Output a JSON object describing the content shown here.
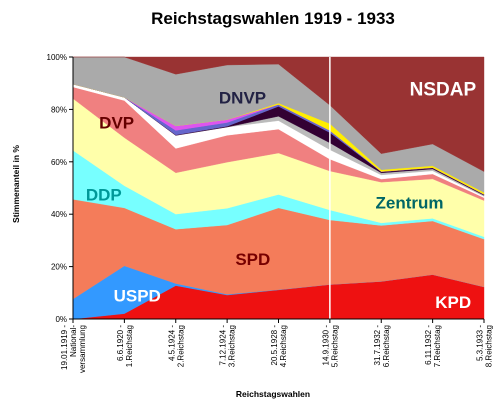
{
  "chart_data": {
    "type": "area",
    "stacked": true,
    "title": "Reichstagswahlen 1919 - 1933",
    "xlabel": "Reichstagswahlen",
    "ylabel": "Stimmenanteil in %",
    "ylim": [
      0,
      100
    ],
    "yticks": [
      "0%",
      "20%",
      "40%",
      "60%",
      "80%",
      "100%"
    ],
    "categories": [
      [
        "19.01.1919 -",
        "National-",
        "versammlung"
      ],
      [
        "6.6.1920 -",
        "1.Reichstag"
      ],
      [
        "4.5.1924 -",
        "2.Reichstag"
      ],
      [
        "7.12.1924 -",
        "3.Reichstag"
      ],
      [
        "20.5.1928 -",
        "4.Reichstag"
      ],
      [
        "14.9.1930 -",
        "5.Reichstag"
      ],
      [
        "31.7.1932 -",
        "6.Reichstag"
      ],
      [
        "6.11.1932 -",
        "7.Reichstag"
      ],
      [
        "5.3.1933 -",
        "8.Reichstag"
      ]
    ],
    "series": [
      {
        "name": "KPD",
        "color": "#ee1111",
        "values": [
          0,
          2,
          12.6,
          9,
          10.6,
          13.1,
          14.5,
          16.9,
          12.3
        ]
      },
      {
        "name": "USPD",
        "color": "#3399ff",
        "values": [
          7.6,
          17.9,
          0.8,
          0.3,
          0.1,
          0,
          0,
          0,
          0
        ]
      },
      {
        "name": "SPD",
        "color": "#f47c5a",
        "values": [
          37.9,
          21.7,
          20.5,
          26,
          29.8,
          24.5,
          21.6,
          20.4,
          18.3
        ]
      },
      {
        "name": "DDP",
        "color": "#77ffff",
        "values": [
          18.6,
          8.3,
          5.7,
          6.3,
          4.9,
          3.8,
          1,
          1,
          0.9
        ]
      },
      {
        "name": "Zentrum",
        "color": "#ffffaa",
        "values": [
          19.7,
          18,
          15.6,
          17.3,
          15.1,
          14.8,
          15.7,
          15,
          13.9
        ]
      },
      {
        "name": "DVP",
        "color": "#f08080",
        "values": [
          4.4,
          13.9,
          9.2,
          10.1,
          8.7,
          4.5,
          1.2,
          1.9,
          1.1
        ]
      },
      {
        "name": "",
        "color": "#ffffff",
        "values": [
          1.1,
          1.2,
          4.9,
          3.1,
          3.1,
          3.6,
          1.6,
          1.2,
          0.5
        ]
      },
      {
        "name": "",
        "color": "#bbbbbb",
        "values": [
          0,
          0,
          0,
          0,
          1.6,
          2.6,
          0.8,
          0.7,
          0.4
        ]
      },
      {
        "name": "",
        "color": "#330033",
        "values": [
          0,
          0,
          0.2,
          0.3,
          3.6,
          3.9,
          0.4,
          0.4,
          0.3
        ]
      },
      {
        "name": "",
        "color": "#6666cc",
        "values": [
          0,
          0,
          1.7,
          1.4,
          0.7,
          0.8,
          0.1,
          0.1,
          0.1
        ]
      },
      {
        "name": "",
        "color": "#dd55ee",
        "values": [
          0,
          0,
          1.7,
          1.1,
          0,
          0,
          0,
          0,
          0
        ]
      },
      {
        "name": "",
        "color": "#ffee00",
        "values": [
          0,
          0,
          0,
          0,
          0.5,
          2.6,
          0.7,
          0.7,
          0.7
        ]
      },
      {
        "name": "DNVP",
        "color": "#aaaaaa",
        "values": [
          10.3,
          15.1,
          19.5,
          20.5,
          14.2,
          7,
          6.2,
          8.3,
          8
        ]
      },
      {
        "name": "NSDAP",
        "color": "#993333",
        "values": [
          0,
          0,
          6.5,
          3,
          2.6,
          18.3,
          37.3,
          33.1,
          43.9
        ]
      }
    ],
    "annotation_date": "14.9.1930",
    "labels": [
      {
        "text": "NSDAP",
        "color": "#ffffff",
        "size": 19,
        "cat": 7.2,
        "y": 88
      },
      {
        "text": "DNVP",
        "color": "#222244",
        "size": 17,
        "cat": 3.3,
        "y": 84.5
      },
      {
        "text": "DVP",
        "color": "#660000",
        "size": 17,
        "cat": 0.85,
        "y": 75
      },
      {
        "text": "DDP",
        "color": "#009999",
        "size": 17,
        "cat": 0.6,
        "y": 47.5
      },
      {
        "text": "Zentrum",
        "color": "#006666",
        "size": 17,
        "cat": 6.55,
        "y": 44.5
      },
      {
        "text": "SPD",
        "color": "#770000",
        "size": 17,
        "cat": 3.5,
        "y": 23
      },
      {
        "text": "USPD",
        "color": "#ffffff",
        "size": 17,
        "cat": 1.25,
        "y": 9
      },
      {
        "text": "KPD",
        "color": "#ffffff",
        "size": 17,
        "cat": 7.4,
        "y": 6.5
      }
    ]
  }
}
